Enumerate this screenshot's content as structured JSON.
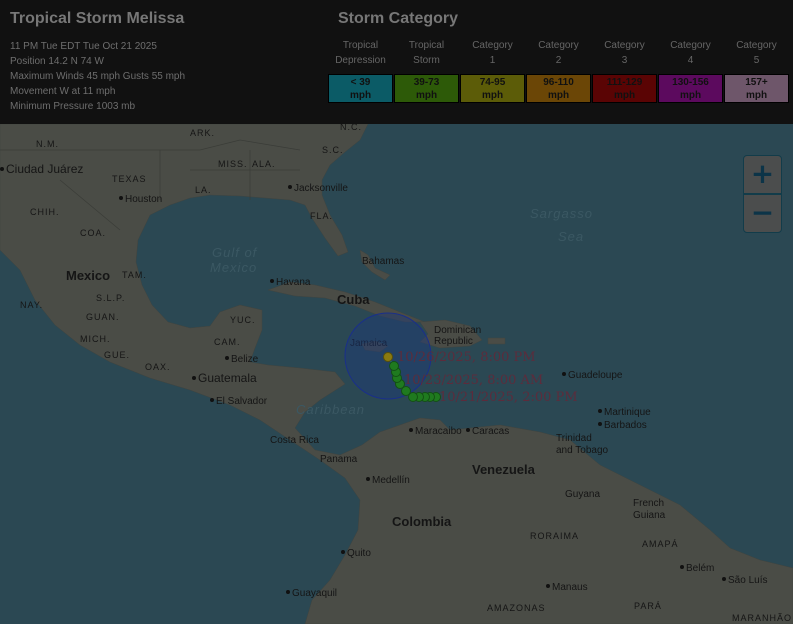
{
  "storm": {
    "title": "Tropical Storm Melissa",
    "time": "11 PM Tue EDT Tue Oct 21 2025",
    "position": "Position 14.2 N 74 W",
    "winds": "Maximum Winds 45 mph Gusts 55 mph",
    "movement": "Movement W at 11 mph",
    "pressure": "Minimum Pressure 1003 mb"
  },
  "legend": {
    "title": "Storm Category",
    "categories": [
      {
        "line1": "Tropical",
        "line2": "Depression",
        "range": "< 39",
        "unit": "mph",
        "color": "#0b5b66"
      },
      {
        "line1": "Tropical",
        "line2": "Storm",
        "range": "39-73",
        "unit": "mph",
        "color": "#2d5a08"
      },
      {
        "line1": "Category",
        "line2": "1",
        "range": "74-95",
        "unit": "mph",
        "color": "#5c5c08"
      },
      {
        "line1": "Category",
        "line2": "2",
        "range": "96-110",
        "unit": "mph",
        "color": "#6b4606"
      },
      {
        "line1": "Category",
        "line2": "3",
        "range": "111-129",
        "unit": "mph",
        "color": "#5a0404"
      },
      {
        "line1": "Category",
        "line2": "4",
        "range": "130-156",
        "unit": "mph",
        "color": "#5c0a5e"
      },
      {
        "line1": "Category",
        "line2": "5",
        "range": "157+",
        "unit": "mph",
        "color": "#6e566a"
      }
    ]
  },
  "track": {
    "labels": [
      "10/26/2025, 8:00 PM",
      "10/23/2025, 8:00 AM",
      "10/21/2025, 2:00 PM"
    ],
    "point_color": "#1f7a1f",
    "forecast_end_color": "#8a7a10",
    "cone_color": "#1c3a7a"
  },
  "map_labels": {
    "ark": "ARK.",
    "nc": "N.C.",
    "nm": "N.M.",
    "miss": "MISS.",
    "ala": "ALA.",
    "sc": "S.C.",
    "juarez": "Ciudad Juárez",
    "texas": "TEXAS",
    "la": "LA.",
    "jacksonville": "Jacksonville",
    "houston": "Houston",
    "chih": "CHIH.",
    "fla": "FLA.",
    "coa": "COA.",
    "sargasso1": "Sargasso",
    "sargasso2": "Sea",
    "gulf1": "Gulf of",
    "gulf2": "Mexico",
    "bahamas": "Bahamas",
    "mexico": "Mexico",
    "tam": "TAM.",
    "havana": "Havana",
    "cuba": "Cuba",
    "nay": "NAY.",
    "slp": "S.L.P.",
    "guan": "GUAN.",
    "yuc": "YUC.",
    "mich": "MICH.",
    "cam": "CAM.",
    "dr1": "Dominican",
    "dr2": "Republic",
    "jamaica": "Jamaica",
    "gue": "GUE.",
    "belize": "Belize",
    "oax": "OAX.",
    "guadeloupe": "Guadeloupe",
    "guatemala": "Guatemala",
    "martinique": "Martinique",
    "elsalvador": "El Salvador",
    "barbados": "Barbados",
    "caribbean": "Caribbean",
    "maracaibo": "Maracaibo",
    "caracas": "Caracas",
    "tt1": "Trinidad",
    "tt2": "and Tobago",
    "costarica": "Costa Rica",
    "panama": "Panama",
    "venezuela": "Venezuela",
    "medellin": "Medellín",
    "guyana": "Guyana",
    "fg1": "French",
    "fg2": "Guiana",
    "colombia": "Colombia",
    "roraima": "RORAIMA",
    "amapa": "AMAPÁ",
    "quito": "Quito",
    "belem": "Belém",
    "guayaquil": "Guayaquil",
    "manaus": "Manaus",
    "saoluis": "São Luís",
    "amazonas": "AMAZONAS",
    "para": "PARÁ",
    "maranhao": "MARANHÃO"
  },
  "zoom": {
    "in": "+",
    "out": "−"
  }
}
